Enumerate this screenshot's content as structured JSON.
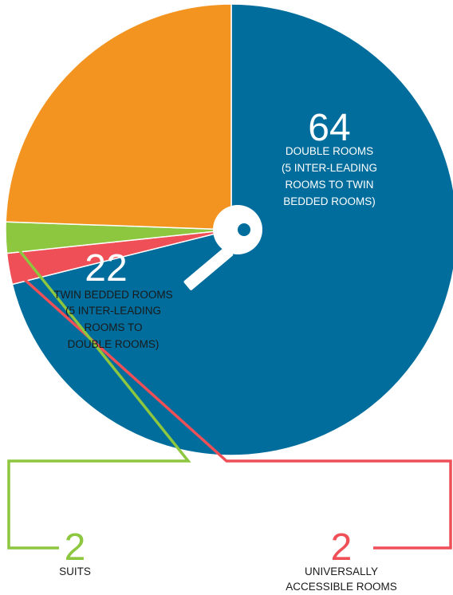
{
  "chart_data": {
    "type": "pie",
    "slices": [
      {
        "key": "double",
        "value": 64,
        "value_label": "64",
        "label_lines": [
          "DOUBLE ROOMS",
          "(5 INTER-LEADING",
          "ROOMS TO TWIN",
          "BEDDED ROOMS)"
        ],
        "color": "#006d9c",
        "value_color": "#ffffff",
        "label_color": "#ffffff"
      },
      {
        "key": "accessible",
        "value": 2,
        "value_label": "2",
        "label_lines": [
          "UNIVERSALLY",
          "ACCESSIBLE ROOMS"
        ],
        "color": "#ef4f57",
        "value_color": "#ef4f57",
        "label_color": "#1a1a1a"
      },
      {
        "key": "suits",
        "value": 2,
        "value_label": "2",
        "label_lines": [
          "SUITS"
        ],
        "color": "#8dc63f",
        "value_color": "#8dc63f",
        "label_color": "#1a1a1a"
      },
      {
        "key": "twin",
        "value": 22,
        "value_label": "22",
        "label_lines": [
          "TWIN BEDDED ROOMS",
          "(5 INTER-LEADING",
          "ROOMS TO",
          "DOUBLE ROOMS)"
        ],
        "color": "#f39420",
        "value_color": "#ffffff",
        "label_color": "#1a1a1a"
      }
    ],
    "center_icon": "key-icon",
    "key_color": "#ffffff",
    "key_hole_color": "#006d9c"
  }
}
